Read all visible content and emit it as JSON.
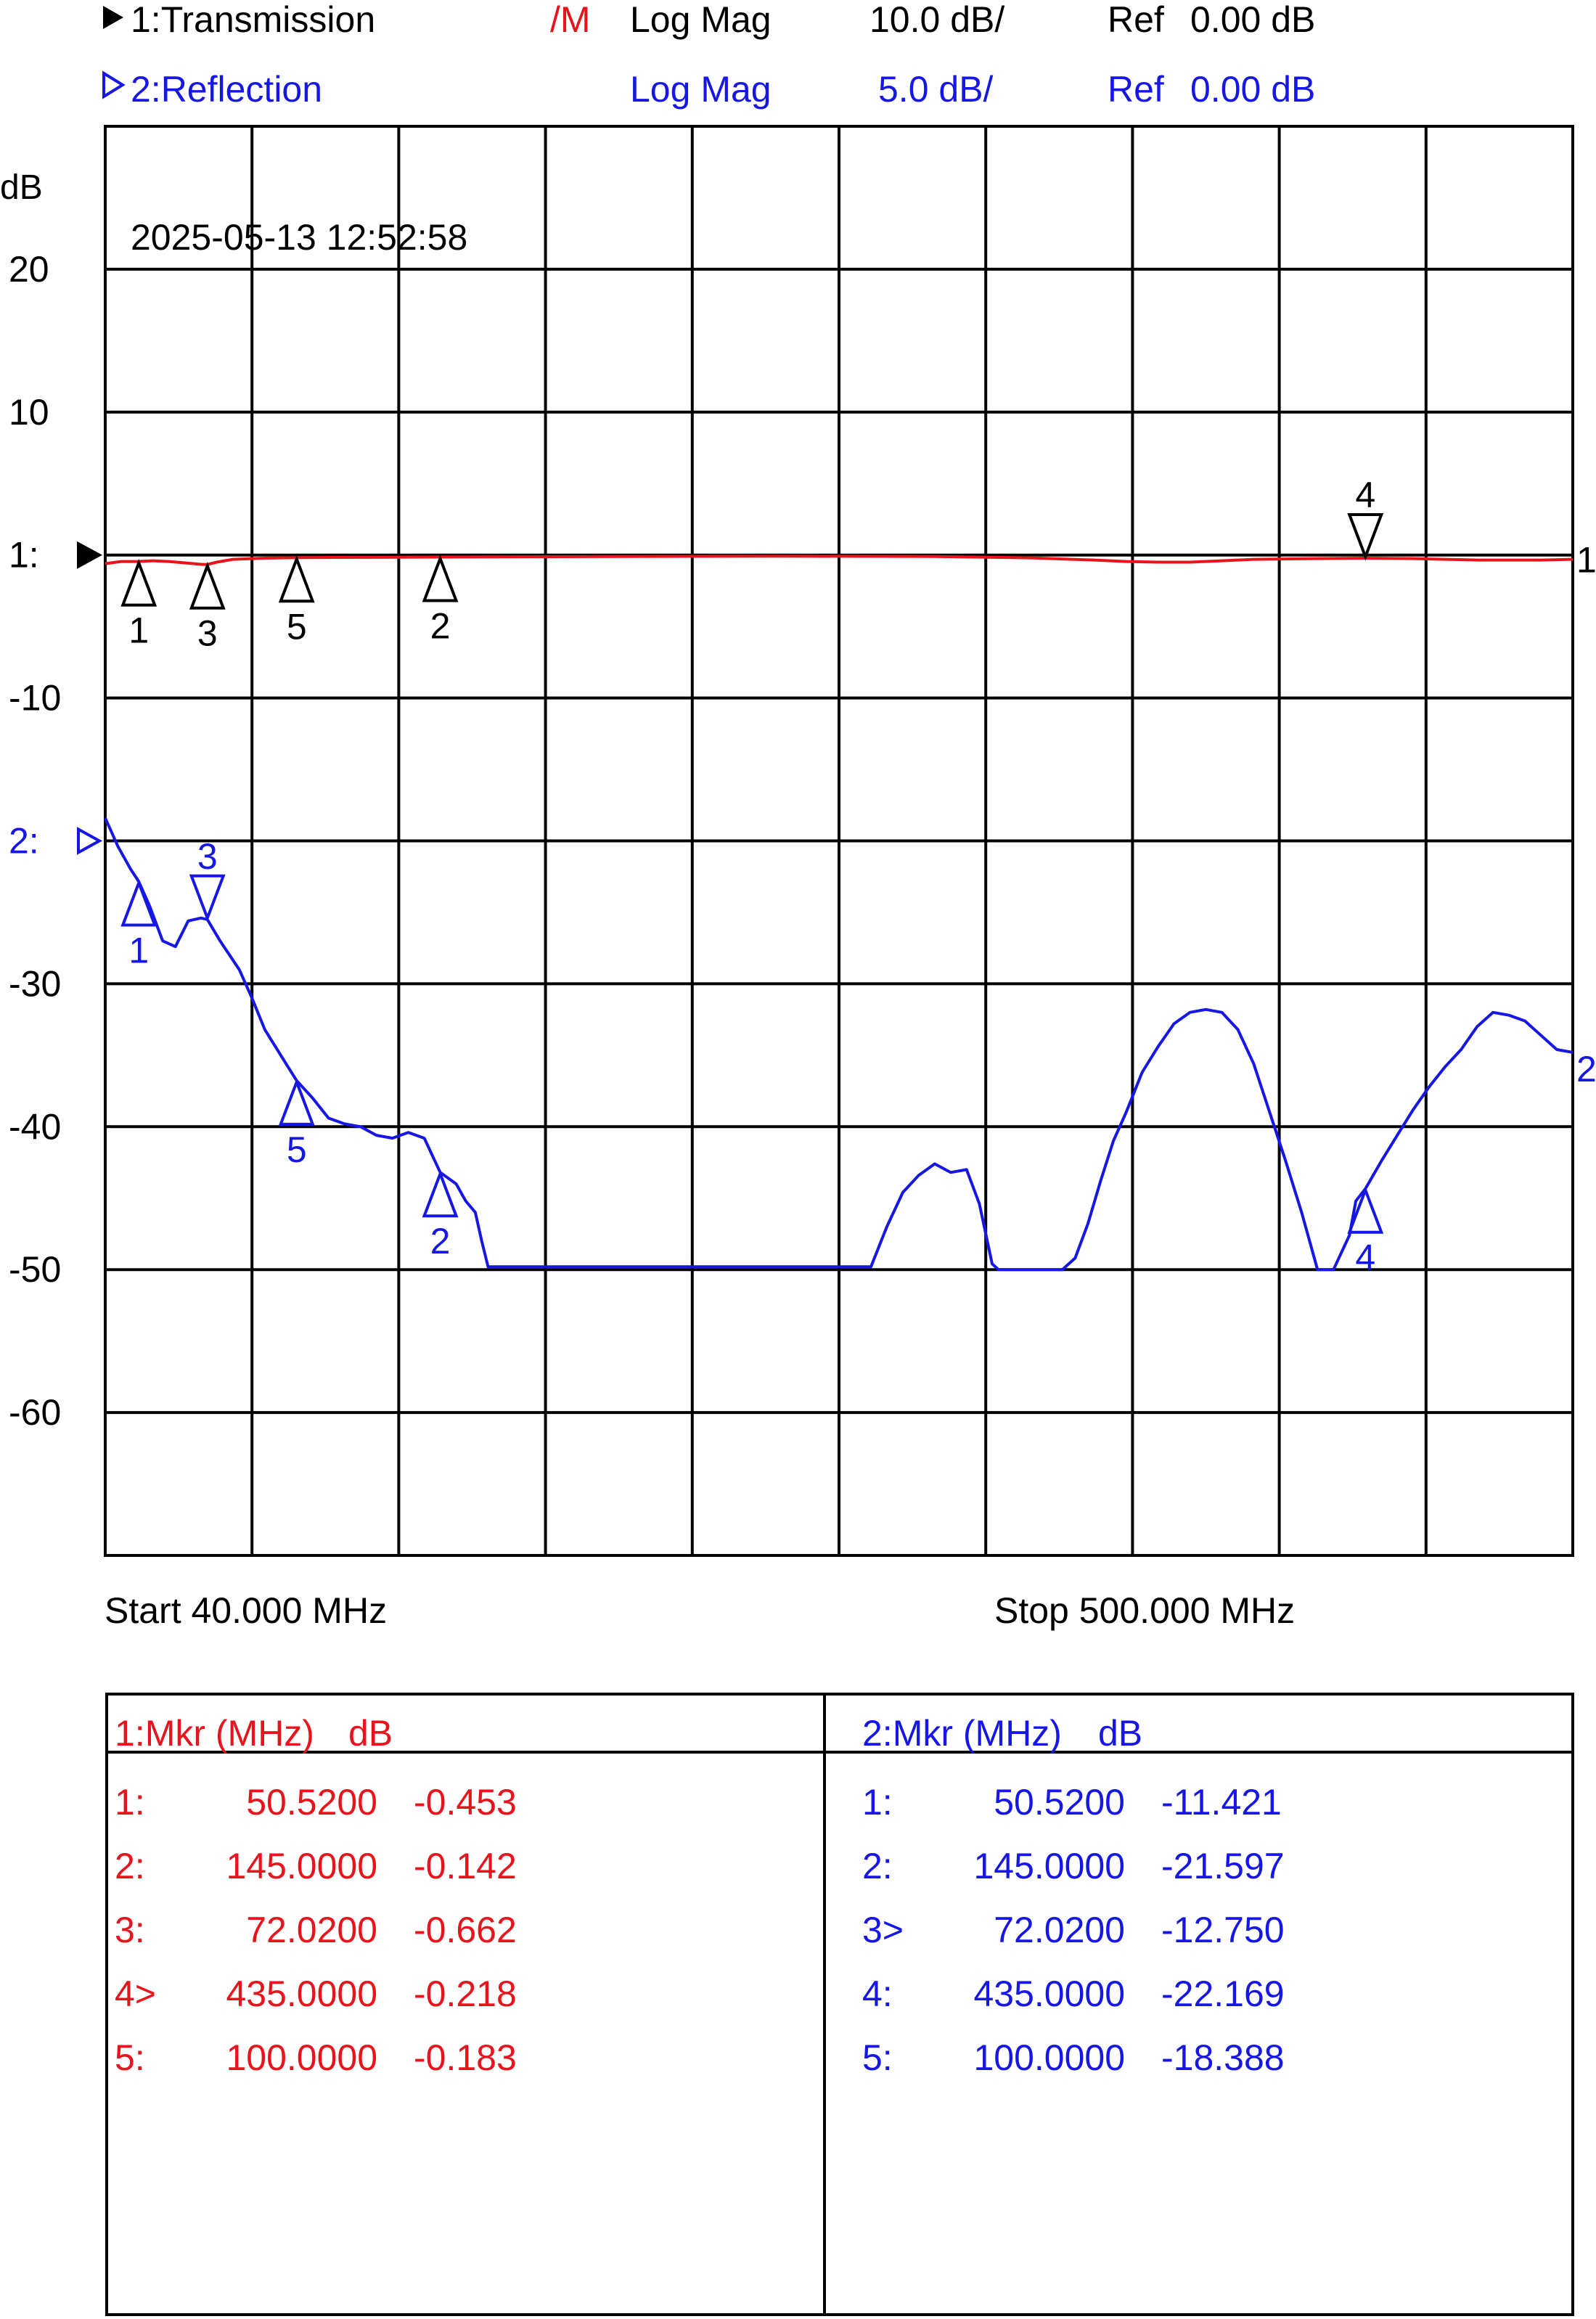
{
  "header": {
    "ch1": {
      "label": "1:Transmission",
      "memory_flag": "/M",
      "format": "Log Mag",
      "scale": "10.0 dB/",
      "ref_label": "Ref",
      "ref_value": "0.00 dB"
    },
    "ch2": {
      "label": "2:Reflection",
      "format": "Log Mag",
      "scale": "5.0 dB/",
      "ref_label": "Ref",
      "ref_value": "0.00 dB"
    }
  },
  "colors": {
    "ch1": "#e8141b",
    "ch2": "#1616e6",
    "grid": "#000000",
    "text": "#000000"
  },
  "chart_data": {
    "type": "line",
    "timestamp": "2025-05-13 12:52:58",
    "y_unit": "dB",
    "y_tick_labels": [
      "20",
      "10",
      "1:",
      "-10",
      "2:",
      "-30",
      "-40",
      "-50",
      "-60"
    ],
    "ch1_ref_label": "1:",
    "ch2_ref_label": "2:",
    "ch1_trace_end_label": "1",
    "ch2_trace_end_label": "2",
    "x_axis": {
      "start_label": "Start 40.000 MHz",
      "stop_label": "Stop 500.000 MHz",
      "start_mhz": 40,
      "stop_mhz": 500,
      "divisions": 10
    },
    "y_axis": {
      "divisions": 10,
      "ref_division_from_top": 3,
      "ylim_ch1": [
        -70,
        30
      ],
      "ylim_ch2": [
        -35,
        15
      ]
    },
    "series": [
      {
        "name": "1:Transmission",
        "color": "#e8141b",
        "scale_db_per_div": 10,
        "ref_db": 0,
        "x": [
          40,
          45,
          50,
          55,
          60,
          65,
          70,
          72,
          75,
          80,
          90,
          100,
          120,
          145,
          200,
          250,
          300,
          330,
          350,
          360,
          370,
          380,
          390,
          400,
          420,
          435,
          450,
          470,
          490,
          500
        ],
        "y": [
          -0.6,
          -0.45,
          -0.45,
          -0.4,
          -0.45,
          -0.55,
          -0.65,
          -0.662,
          -0.5,
          -0.3,
          -0.22,
          -0.183,
          -0.16,
          -0.142,
          -0.1,
          -0.08,
          -0.1,
          -0.2,
          -0.35,
          -0.45,
          -0.5,
          -0.5,
          -0.4,
          -0.3,
          -0.25,
          -0.218,
          -0.25,
          -0.35,
          -0.35,
          -0.3
        ]
      },
      {
        "name": "2:Reflection",
        "color": "#1616e6",
        "scale_db_per_div": 5,
        "ref_db": 0,
        "x": [
          40,
          44,
          48,
          50.52,
          54,
          58,
          62,
          66,
          70,
          72.02,
          76,
          82,
          86,
          90,
          95,
          100,
          105,
          110,
          115,
          120,
          125,
          130,
          135,
          140,
          145,
          150,
          153,
          156,
          158,
          160,
          200,
          250,
          280,
          285,
          290,
          295,
          300,
          305,
          310,
          314,
          318,
          320,
          340,
          344,
          348,
          352,
          356,
          360,
          365,
          370,
          375,
          380,
          385,
          390,
          395,
          400,
          405,
          410,
          415,
          420,
          425,
          430,
          432,
          435,
          440,
          445,
          450,
          455,
          460,
          465,
          470,
          475,
          480,
          485,
          490,
          495,
          500
        ],
        "y": [
          -9.2,
          -10.2,
          -11.0,
          -11.421,
          -12.3,
          -13.5,
          -13.7,
          -12.8,
          -12.7,
          -12.75,
          -13.5,
          -14.5,
          -15.5,
          -16.6,
          -17.5,
          -18.388,
          -19.0,
          -19.7,
          -19.9,
          -20.0,
          -20.3,
          -20.4,
          -20.2,
          -20.4,
          -21.597,
          -22.0,
          -22.6,
          -23.0,
          -24.0,
          -24.9,
          -24.9,
          -24.9,
          -24.9,
          -23.5,
          -22.3,
          -21.7,
          -21.3,
          -21.6,
          -21.5,
          -22.7,
          -24.8,
          -25.0,
          -25.0,
          -24.6,
          -23.4,
          -21.9,
          -20.5,
          -19.5,
          -18.1,
          -17.2,
          -16.4,
          -16.0,
          -15.9,
          -16.0,
          -16.6,
          -17.8,
          -19.5,
          -21.2,
          -23.0,
          -25.0,
          -25.0,
          -23.8,
          -22.6,
          -22.169,
          -21.2,
          -20.3,
          -19.4,
          -18.6,
          -17.9,
          -17.3,
          -16.5,
          -16.0,
          -16.1,
          -16.3,
          -16.8,
          -17.3,
          -17.4
        ]
      }
    ],
    "markers_ch1": [
      {
        "id": "1",
        "freq": 50.52,
        "value": -0.453,
        "dir": "up",
        "active": false
      },
      {
        "id": "2",
        "freq": 145.0,
        "value": -0.142,
        "dir": "up",
        "active": false
      },
      {
        "id": "3",
        "freq": 72.02,
        "value": -0.662,
        "dir": "up",
        "active": false
      },
      {
        "id": "4",
        "freq": 435.0,
        "value": -0.218,
        "dir": "down",
        "active": true
      },
      {
        "id": "5",
        "freq": 100.0,
        "value": -0.183,
        "dir": "up",
        "active": false
      }
    ],
    "markers_ch2": [
      {
        "id": "1",
        "freq": 50.52,
        "value": -11.421,
        "dir": "up",
        "active": false
      },
      {
        "id": "2",
        "freq": 145.0,
        "value": -21.597,
        "dir": "up",
        "active": false
      },
      {
        "id": "3",
        "freq": 72.02,
        "value": -12.75,
        "dir": "down",
        "active": true
      },
      {
        "id": "4",
        "freq": 435.0,
        "value": -22.169,
        "dir": "up",
        "active": false
      },
      {
        "id": "5",
        "freq": 100.0,
        "value": -18.388,
        "dir": "up",
        "active": false
      }
    ]
  },
  "marker_table": {
    "ch1": {
      "header_mkr": "1:Mkr (MHz)",
      "header_unit": "dB",
      "rows": [
        {
          "id": "1:",
          "freq": "50.5200",
          "value": "-0.453"
        },
        {
          "id": "2:",
          "freq": "145.0000",
          "value": "-0.142"
        },
        {
          "id": "3:",
          "freq": "72.0200",
          "value": "-0.662"
        },
        {
          "id": "4>",
          "freq": "435.0000",
          "value": "-0.218"
        },
        {
          "id": "5:",
          "freq": "100.0000",
          "value": "-0.183"
        }
      ]
    },
    "ch2": {
      "header_mkr": "2:Mkr (MHz)",
      "header_unit": "dB",
      "rows": [
        {
          "id": "1:",
          "freq": "50.5200",
          "value": "-11.421"
        },
        {
          "id": "2:",
          "freq": "145.0000",
          "value": "-21.597"
        },
        {
          "id": "3>",
          "freq": "72.0200",
          "value": "-12.750"
        },
        {
          "id": "4:",
          "freq": "435.0000",
          "value": "-22.169"
        },
        {
          "id": "5:",
          "freq": "100.0000",
          "value": "-18.388"
        }
      ]
    }
  }
}
